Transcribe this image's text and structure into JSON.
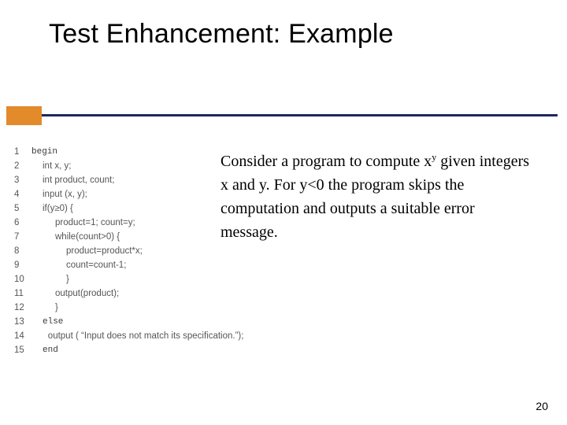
{
  "title": "Test Enhancement: Example",
  "decor": {
    "orange_block_color": "#e38a2a",
    "line_color": "#1a2a5a"
  },
  "code": {
    "color": "#555555",
    "lines": [
      {
        "n": "1",
        "indent": 0,
        "text": "begin",
        "mono": true
      },
      {
        "n": "2",
        "indent": 1,
        "text": "int x, y;"
      },
      {
        "n": "3",
        "indent": 1,
        "text": "int product, count;"
      },
      {
        "n": "4",
        "indent": 1,
        "text": "input (x, y);"
      },
      {
        "n": "5",
        "indent": 1,
        "text": "if(y≥0) {"
      },
      {
        "n": "6",
        "indent": 2,
        "text": "product=1; count=y;"
      },
      {
        "n": "7",
        "indent": 2,
        "text": "while(count>0) {"
      },
      {
        "n": "8",
        "indent": 3,
        "text": "product=product*x;"
      },
      {
        "n": "9",
        "indent": 3,
        "text": "count=count-1;"
      },
      {
        "n": "10",
        "indent": 3,
        "text": "}"
      },
      {
        "n": "11",
        "indent": 2,
        "text": "output(product);"
      },
      {
        "n": "12",
        "indent": 2,
        "text": "}"
      },
      {
        "n": "13",
        "indent": 1,
        "text": "else",
        "mono": true
      },
      {
        "n": "14",
        "indent": 2,
        "text": "output ( “Input does not match its specification.”);"
      },
      {
        "n": "15",
        "indent": 1,
        "text": "end",
        "mono": true
      }
    ]
  },
  "explain": {
    "prefix": "Consider a program to compute x",
    "sup": "y",
    "rest": " given integers x and y. For y<0 the program skips the computation and outputs a suitable error message."
  },
  "page_number": "20"
}
